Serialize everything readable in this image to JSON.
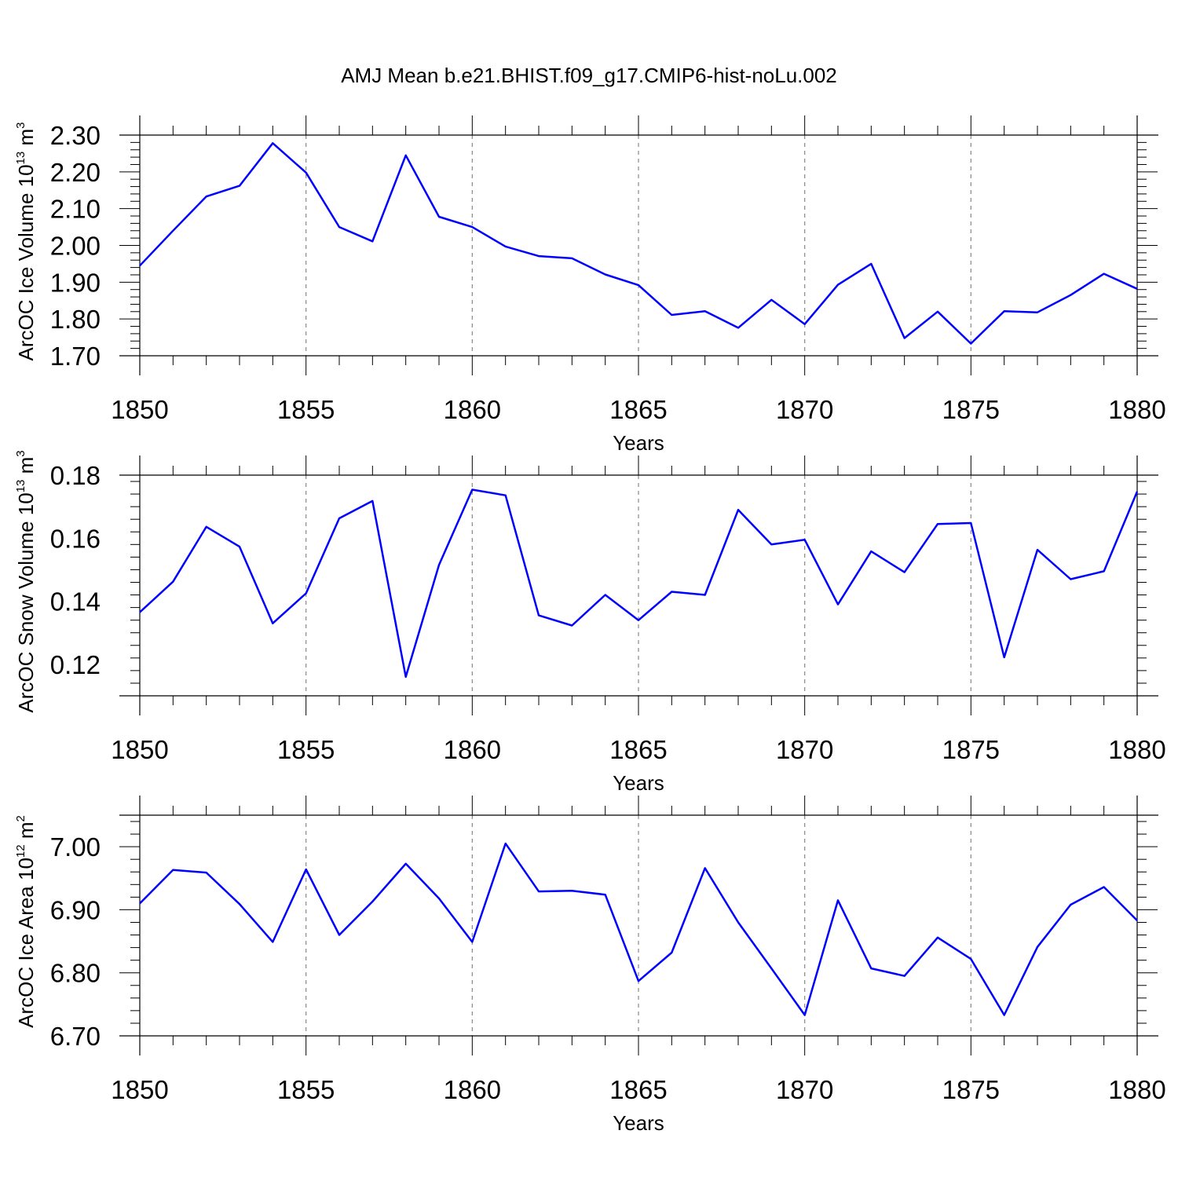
{
  "chart_data": {
    "title": "AMJ Mean b.e21.BHIST.f09_g17.CMIP6-hist-noLu.002",
    "years": [
      1850,
      1851,
      1852,
      1853,
      1854,
      1855,
      1856,
      1857,
      1858,
      1859,
      1860,
      1861,
      1862,
      1863,
      1864,
      1865,
      1866,
      1867,
      1868,
      1869,
      1870,
      1871,
      1872,
      1873,
      1874,
      1875,
      1876,
      1877,
      1878,
      1879,
      1880
    ],
    "panels": [
      {
        "type": "line",
        "ylabel_main": "ArcOC Ice Volume 10",
        "ylabel_exp": "13",
        "ylabel_unit": " m",
        "ylabel_unit_exp": "3",
        "xlabel": "Years",
        "xlim": [
          1850,
          1880
        ],
        "ylim": [
          1.7,
          2.3
        ],
        "grid": "vertical dashed at x major ticks",
        "x_ticks": [
          "1850",
          "1855",
          "1860",
          "1865",
          "1870",
          "1875",
          "1880"
        ],
        "y_ticks": [
          "1.70",
          "1.80",
          "1.90",
          "2.00",
          "2.10",
          "2.20",
          "2.30"
        ],
        "values": [
          1.945,
          2.04,
          2.133,
          2.162,
          2.278,
          2.198,
          2.05,
          2.011,
          2.245,
          2.078,
          2.05,
          1.997,
          1.971,
          1.965,
          1.921,
          1.892,
          1.811,
          1.821,
          1.776,
          1.852,
          1.786,
          1.893,
          1.95,
          1.748,
          1.82,
          1.733,
          1.821,
          1.818,
          1.865,
          1.923,
          1.882
        ]
      },
      {
        "type": "line",
        "ylabel_main": "ArcOC Snow Volume 10",
        "ylabel_exp": "13",
        "ylabel_unit": " m",
        "ylabel_unit_exp": "3",
        "xlabel": "Years",
        "xlim": [
          1850,
          1880
        ],
        "ylim": [
          0.11,
          0.18
        ],
        "grid": "vertical dashed at x major ticks",
        "x_ticks": [
          "1850",
          "1855",
          "1860",
          "1865",
          "1870",
          "1875",
          "1880"
        ],
        "y_ticks": [
          "0.12",
          "0.14",
          "0.16",
          "0.18"
        ],
        "values": [
          0.1365,
          0.1462,
          0.1636,
          0.1573,
          0.133,
          0.1425,
          0.1663,
          0.1718,
          0.116,
          0.1515,
          0.1754,
          0.1736,
          0.1355,
          0.1323,
          0.142,
          0.134,
          0.143,
          0.142,
          0.169,
          0.158,
          0.1595,
          0.139,
          0.1558,
          0.1492,
          0.1645,
          0.1648,
          0.1222,
          0.1563,
          0.147,
          0.1495,
          0.1748
        ]
      },
      {
        "type": "line",
        "ylabel_main": "ArcOC Ice Area 10",
        "ylabel_exp": "12",
        "ylabel_unit": " m",
        "ylabel_unit_exp": "2",
        "xlabel": "Years",
        "xlim": [
          1850,
          1880
        ],
        "ylim": [
          6.7,
          7.05
        ],
        "grid": "vertical dashed at x major ticks",
        "x_ticks": [
          "1850",
          "1855",
          "1860",
          "1865",
          "1870",
          "1875",
          "1880"
        ],
        "y_ticks": [
          "6.70",
          "6.80",
          "6.90",
          "7.00"
        ],
        "values": [
          6.91,
          6.963,
          6.959,
          6.909,
          6.849,
          6.964,
          6.86,
          6.913,
          6.973,
          6.918,
          6.849,
          7.005,
          6.929,
          6.93,
          6.924,
          6.787,
          6.832,
          6.966,
          6.88,
          6.807,
          6.733,
          6.915,
          6.807,
          6.795,
          6.856,
          6.822,
          6.733,
          6.841,
          6.908,
          6.936,
          6.883
        ]
      }
    ]
  },
  "colors": {
    "series": "#0000ff",
    "frame": "#000000",
    "grid": "#888888"
  }
}
